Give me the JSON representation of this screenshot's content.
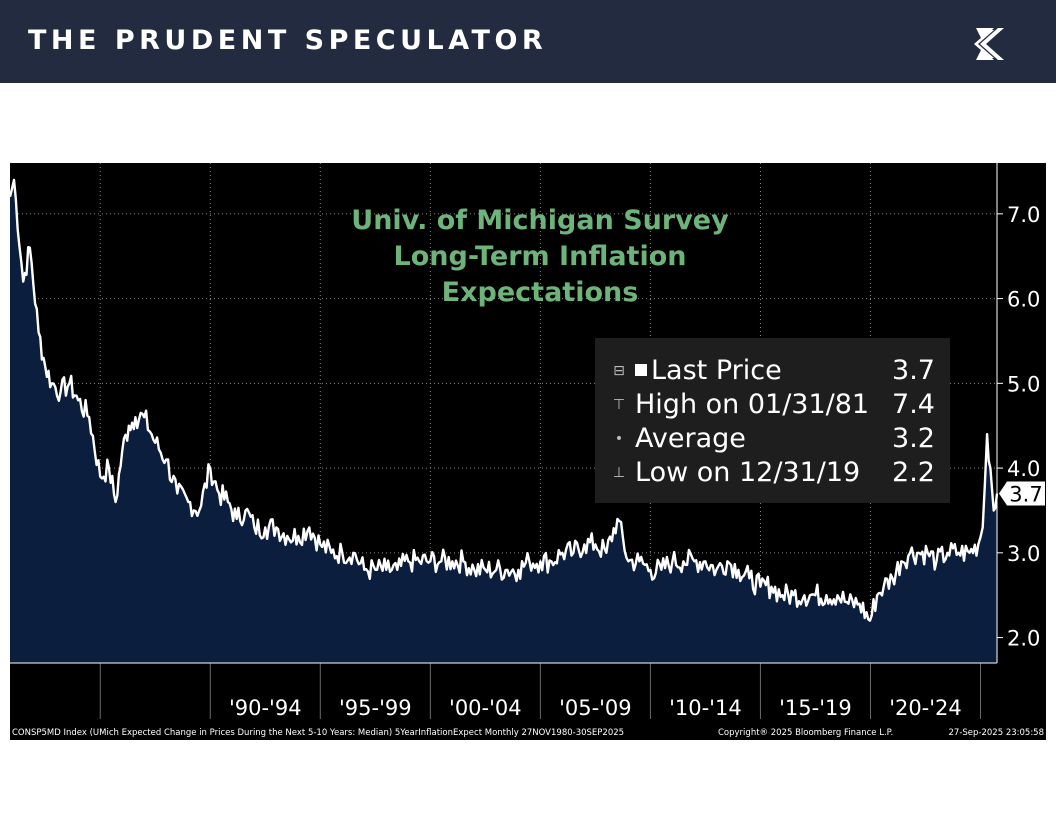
{
  "header": {
    "brand": "THE PRUDENT SPECULATOR",
    "logo_icon": "kb-monogram-icon"
  },
  "colors": {
    "banner": "#222b40",
    "chart_background": "#000000",
    "area_fill": "#0c1e3d",
    "line": "#ffffff",
    "title": "#6db37a"
  },
  "chart_data": {
    "type": "area",
    "title_lines": [
      "Univ. of Michigan Survey",
      "Long-Term Inflation",
      "Expectations"
    ],
    "x_tick_labels": [
      "'90-'94",
      "'95-'99",
      "'00-'04",
      "'05-'09",
      "'10-'14",
      "'15-'19",
      "'20-'24"
    ],
    "x_range": [
      1980.9,
      2025.75
    ],
    "y_range": [
      1.7,
      7.6
    ],
    "y_ticks": [
      "7.0",
      "6.0",
      "5.0",
      "4.0",
      "3.0",
      "2.0"
    ],
    "grid": true,
    "y_axis_position": "right",
    "last_value_label": "3.7",
    "legend": {
      "placement": "top-right",
      "items": [
        {
          "label": "Last Price",
          "value": "3.7",
          "marker": "square"
        },
        {
          "label": "High on 01/31/81",
          "value": "7.4",
          "marker": "high"
        },
        {
          "label": "Average",
          "value": "3.2",
          "marker": "dot"
        },
        {
          "label": "Low on 12/31/19",
          "value": "2.2",
          "marker": "low"
        }
      ]
    },
    "series": [
      {
        "x": [
          1980.9,
          1981.08,
          1981.5,
          1981.8,
          1982.2,
          1982.5,
          1982.8,
          1983.2,
          1983.6,
          1984.0,
          1984.5,
          1985.0,
          1985.4,
          1985.7,
          1986.0,
          1986.3,
          1986.6,
          1987.0,
          1987.5,
          1988.0,
          1988.5,
          1989.0,
          1989.5,
          1990.0,
          1990.4,
          1990.8,
          1991.2,
          1991.6,
          1992.0,
          1992.5,
          1993.0,
          1993.5,
          1994.0,
          1994.5,
          1995.0,
          1995.5,
          1996.0,
          1996.5,
          1997.0,
          1997.5,
          1998.0,
          1998.5,
          1999.0,
          1999.5,
          2000.0,
          2000.5,
          2001.0,
          2001.5,
          2002.0,
          2002.5,
          2003.0,
          2003.5,
          2004.0,
          2004.5,
          2005.0,
          2005.5,
          2006.0,
          2006.5,
          2007.0,
          2007.5,
          2008.0,
          2008.5,
          2009.0,
          2009.5,
          2010.0,
          2010.5,
          2011.0,
          2011.5,
          2012.0,
          2012.5,
          2013.0,
          2013.5,
          2014.0,
          2014.5,
          2015.0,
          2015.5,
          2016.0,
          2016.5,
          2017.0,
          2017.5,
          2018.0,
          2018.5,
          2019.0,
          2019.5,
          2019.98,
          2020.3,
          2020.6,
          2021.0,
          2021.4,
          2021.8,
          2022.2,
          2022.6,
          2023.0,
          2023.5,
          2024.0,
          2024.5,
          2024.9,
          2025.1,
          2025.3,
          2025.45,
          2025.6,
          2025.75
        ],
        "y": [
          7.2,
          7.4,
          6.2,
          6.6,
          5.6,
          5.2,
          5.0,
          4.9,
          5.0,
          4.8,
          4.6,
          3.9,
          4.0,
          3.6,
          4.2,
          4.5,
          4.6,
          4.6,
          4.3,
          4.1,
          3.7,
          3.6,
          3.5,
          4.0,
          3.7,
          3.6,
          3.4,
          3.5,
          3.3,
          3.3,
          3.3,
          3.2,
          3.2,
          3.3,
          3.1,
          3.0,
          3.0,
          3.0,
          2.8,
          2.8,
          2.8,
          2.8,
          2.9,
          2.9,
          2.9,
          2.9,
          2.9,
          2.9,
          2.8,
          2.8,
          2.8,
          2.8,
          2.8,
          2.9,
          2.9,
          2.9,
          3.0,
          3.0,
          3.1,
          3.1,
          3.0,
          3.4,
          2.9,
          2.9,
          2.8,
          2.8,
          2.9,
          2.9,
          2.9,
          2.9,
          2.8,
          2.9,
          2.8,
          2.7,
          2.6,
          2.6,
          2.5,
          2.5,
          2.5,
          2.5,
          2.5,
          2.5,
          2.4,
          2.4,
          2.2,
          2.5,
          2.6,
          2.7,
          2.9,
          3.0,
          3.0,
          3.0,
          2.9,
          3.0,
          3.0,
          3.0,
          3.1,
          3.3,
          4.4,
          4.0,
          3.5,
          3.7
        ]
      }
    ]
  },
  "footer": {
    "index_info": "CONSP5MD Index (UMich Expected Change in Prices During the Next 5-10 Years: Median) 5YearInflationExpect  Monthly 27NOV1980-30SEP2025",
    "copyright": "Copyright® 2025 Bloomberg Finance L.P.",
    "timestamp": "27-Sep-2025 23:05:58"
  }
}
